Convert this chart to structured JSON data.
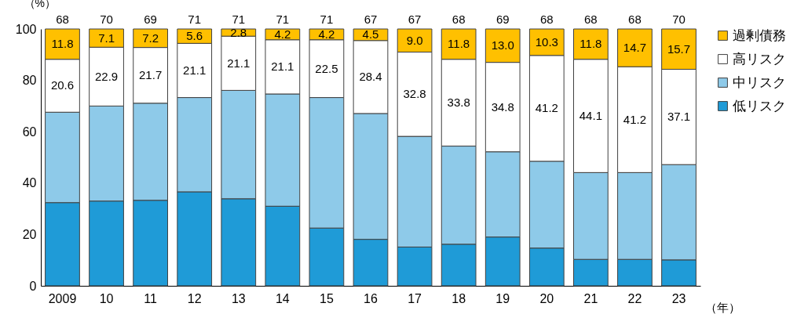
{
  "chart_data": {
    "type": "bar",
    "stacked": true,
    "ylabel": "（%）",
    "xlabel": "（年）",
    "categories": [
      "2009",
      "10",
      "11",
      "12",
      "13",
      "14",
      "15",
      "16",
      "17",
      "18",
      "19",
      "20",
      "21",
      "22",
      "23"
    ],
    "ylim": [
      0,
      100
    ],
    "yticks": [
      0,
      20,
      40,
      60,
      80,
      100
    ],
    "grid": false,
    "legend": "right",
    "series": [
      {
        "name": "低リスク",
        "color": "#1f9bd7",
        "values": [
          32.4,
          33.0,
          33.3,
          36.6,
          33.9,
          31.0,
          22.5,
          18.1,
          15.1,
          16.2,
          19.0,
          14.7,
          10.3,
          10.3,
          10.1
        ]
      },
      {
        "name": "中リスク",
        "color": "#8ecae9",
        "values": [
          35.2,
          37.0,
          37.8,
          36.7,
          42.2,
          43.7,
          50.8,
          49.0,
          43.1,
          38.2,
          33.2,
          33.8,
          33.8,
          33.8,
          37.1
        ]
      },
      {
        "name": "高リスク",
        "color": "#ffffff",
        "values": [
          20.6,
          22.9,
          21.7,
          21.1,
          21.1,
          21.1,
          22.5,
          28.4,
          32.8,
          33.8,
          34.8,
          41.2,
          44.1,
          41.2,
          37.1
        ],
        "value_labels": [
          "20.6",
          "22.9",
          "21.7",
          "21.1",
          "21.1",
          "21.1",
          "22.5",
          "28.4",
          "32.8",
          "33.8",
          "34.8",
          "41.2",
          "44.1",
          "41.2",
          "37.1"
        ]
      },
      {
        "name": "過剰債務",
        "color": "#ffc000",
        "values": [
          11.8,
          7.1,
          7.2,
          5.6,
          2.8,
          4.2,
          4.2,
          4.5,
          9.0,
          11.8,
          13.0,
          10.3,
          11.8,
          14.7,
          15.7
        ],
        "value_labels": [
          "11.8",
          "7.1",
          "7.2",
          "5.6",
          "2.8",
          "4.2",
          "4.2",
          "4.5",
          "9.0",
          "11.8",
          "13.0",
          "10.3",
          "11.8",
          "14.7",
          "15.7"
        ]
      }
    ],
    "annotations": [
      "68",
      "70",
      "69",
      "71",
      "71",
      "71",
      "71",
      "67",
      "67",
      "68",
      "69",
      "68",
      "68",
      "68",
      "70"
    ]
  }
}
